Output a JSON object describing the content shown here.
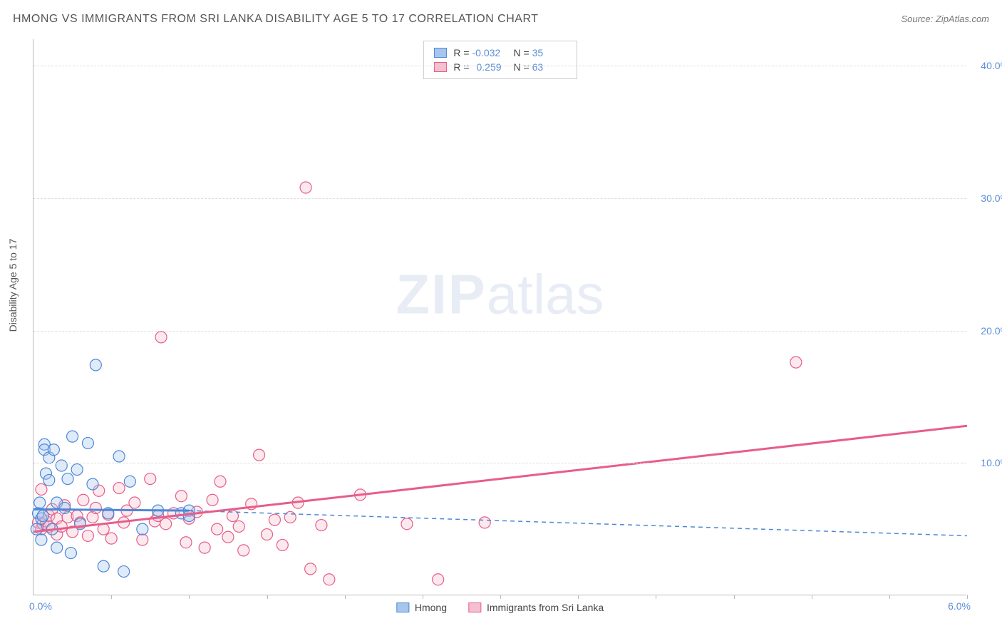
{
  "header": {
    "title": "HMONG VS IMMIGRANTS FROM SRI LANKA DISABILITY AGE 5 TO 17 CORRELATION CHART",
    "source": "Source: ZipAtlas.com"
  },
  "chart": {
    "type": "scatter",
    "ylabel": "Disability Age 5 to 17",
    "watermark": {
      "bold": "ZIP",
      "rest": "atlas"
    },
    "xlim": [
      0.0,
      6.0
    ],
    "ylim": [
      0.0,
      42.0
    ],
    "x_origin_label": "0.0%",
    "x_end_label": "6.0%",
    "y_ticks": [
      {
        "value": 10.0,
        "label": "10.0%"
      },
      {
        "value": 20.0,
        "label": "20.0%"
      },
      {
        "value": 30.0,
        "label": "30.0%"
      },
      {
        "value": 40.0,
        "label": "40.0%"
      }
    ],
    "x_tick_positions": [
      0.5,
      1.0,
      1.5,
      2.0,
      2.5,
      3.0,
      3.5,
      4.0,
      4.5,
      5.0,
      5.5,
      6.0
    ],
    "grid_color": "#dddddd",
    "axis_color": "#bbbbbb",
    "tick_label_color": "#5b8fd6",
    "background_color": "#ffffff",
    "marker_radius": 8,
    "series_a": {
      "label": "Hmong",
      "color_fill": "#a7c6ed",
      "color_stroke": "#4d88d6",
      "R": "-0.032",
      "N": "35",
      "trend": {
        "x1": 0.0,
        "y1": 6.5,
        "x2": 1.0,
        "y2": 6.4,
        "dashed_beyond_x": 1.0,
        "x3": 6.0,
        "y3": 4.5,
        "stroke_width": 3
      },
      "points": [
        [
          0.02,
          5.0
        ],
        [
          0.03,
          6.2
        ],
        [
          0.04,
          7.0
        ],
        [
          0.05,
          4.2
        ],
        [
          0.05,
          5.8
        ],
        [
          0.06,
          6.0
        ],
        [
          0.07,
          11.4
        ],
        [
          0.07,
          11.0
        ],
        [
          0.08,
          9.2
        ],
        [
          0.1,
          8.7
        ],
        [
          0.1,
          10.4
        ],
        [
          0.12,
          5.0
        ],
        [
          0.13,
          11.0
        ],
        [
          0.15,
          7.0
        ],
        [
          0.15,
          3.6
        ],
        [
          0.18,
          9.8
        ],
        [
          0.2,
          6.6
        ],
        [
          0.22,
          8.8
        ],
        [
          0.24,
          3.2
        ],
        [
          0.25,
          12.0
        ],
        [
          0.28,
          9.5
        ],
        [
          0.3,
          5.4
        ],
        [
          0.35,
          11.5
        ],
        [
          0.38,
          8.4
        ],
        [
          0.4,
          17.4
        ],
        [
          0.45,
          2.2
        ],
        [
          0.48,
          6.2
        ],
        [
          0.55,
          10.5
        ],
        [
          0.58,
          1.8
        ],
        [
          0.62,
          8.6
        ],
        [
          0.7,
          5.0
        ],
        [
          0.8,
          6.4
        ],
        [
          0.95,
          6.2
        ],
        [
          1.0,
          6.4
        ],
        [
          1.0,
          6.0
        ]
      ]
    },
    "series_b": {
      "label": "Immigrants from Sri Lanka",
      "color_fill": "#f4bfcf",
      "color_stroke": "#e75d8a",
      "R": "0.259",
      "N": "63",
      "trend": {
        "x1": 0.0,
        "y1": 4.8,
        "x2": 6.0,
        "y2": 12.8,
        "stroke_width": 3
      },
      "points": [
        [
          0.03,
          5.5
        ],
        [
          0.05,
          5.0
        ],
        [
          0.06,
          5.4
        ],
        [
          0.08,
          5.6
        ],
        [
          0.1,
          6.0
        ],
        [
          0.1,
          5.2
        ],
        [
          0.12,
          6.5
        ],
        [
          0.15,
          5.8
        ],
        [
          0.15,
          4.6
        ],
        [
          0.18,
          5.2
        ],
        [
          0.2,
          6.8
        ],
        [
          0.22,
          5.9
        ],
        [
          0.25,
          4.8
        ],
        [
          0.28,
          6.0
        ],
        [
          0.3,
          5.5
        ],
        [
          0.32,
          7.2
        ],
        [
          0.35,
          4.5
        ],
        [
          0.38,
          5.9
        ],
        [
          0.4,
          6.6
        ],
        [
          0.42,
          7.9
        ],
        [
          0.45,
          5.0
        ],
        [
          0.48,
          6.1
        ],
        [
          0.5,
          4.3
        ],
        [
          0.55,
          8.1
        ],
        [
          0.58,
          5.5
        ],
        [
          0.6,
          6.4
        ],
        [
          0.65,
          7.0
        ],
        [
          0.7,
          4.2
        ],
        [
          0.75,
          8.8
        ],
        [
          0.78,
          5.6
        ],
        [
          0.8,
          6.0
        ],
        [
          0.82,
          19.5
        ],
        [
          0.85,
          5.4
        ],
        [
          0.9,
          6.2
        ],
        [
          0.95,
          7.5
        ],
        [
          0.98,
          4.0
        ],
        [
          1.0,
          5.8
        ],
        [
          1.05,
          6.3
        ],
        [
          1.1,
          3.6
        ],
        [
          1.15,
          7.2
        ],
        [
          1.18,
          5.0
        ],
        [
          1.2,
          8.6
        ],
        [
          1.25,
          4.4
        ],
        [
          1.28,
          6.0
        ],
        [
          1.32,
          5.2
        ],
        [
          1.35,
          3.4
        ],
        [
          1.4,
          6.9
        ],
        [
          1.45,
          10.6
        ],
        [
          1.5,
          4.6
        ],
        [
          1.55,
          5.7
        ],
        [
          1.6,
          3.8
        ],
        [
          1.65,
          5.9
        ],
        [
          1.7,
          7.0
        ],
        [
          1.75,
          30.8
        ],
        [
          1.78,
          2.0
        ],
        [
          1.85,
          5.3
        ],
        [
          1.9,
          1.2
        ],
        [
          2.1,
          7.6
        ],
        [
          2.4,
          5.4
        ],
        [
          2.6,
          1.2
        ],
        [
          2.9,
          5.5
        ],
        [
          4.9,
          17.6
        ],
        [
          0.05,
          8.0
        ]
      ]
    },
    "legend_bottom": [
      {
        "label": "Hmong",
        "fill": "#a7c6ed",
        "stroke": "#4d88d6"
      },
      {
        "label": "Immigrants from Sri Lanka",
        "fill": "#f4bfcf",
        "stroke": "#e75d8a"
      }
    ]
  }
}
